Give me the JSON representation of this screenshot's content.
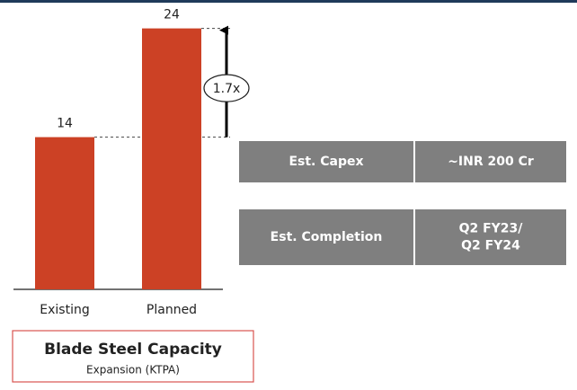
{
  "chart_data": {
    "type": "bar",
    "categories": [
      "Existing",
      "Planned"
    ],
    "values": [
      14,
      24
    ],
    "color": "#cc4125",
    "annotation": "1.7x",
    "caption": {
      "title": "Blade Steel Capacity",
      "subtitle": "Expansion (KTPA)"
    }
  },
  "table": {
    "rows": [
      [
        "Est. Capex",
        "~INR 200 Cr"
      ],
      [
        "Est. Completion",
        [
          "Q2 FY23/",
          "Q2 FY24"
        ]
      ]
    ]
  }
}
